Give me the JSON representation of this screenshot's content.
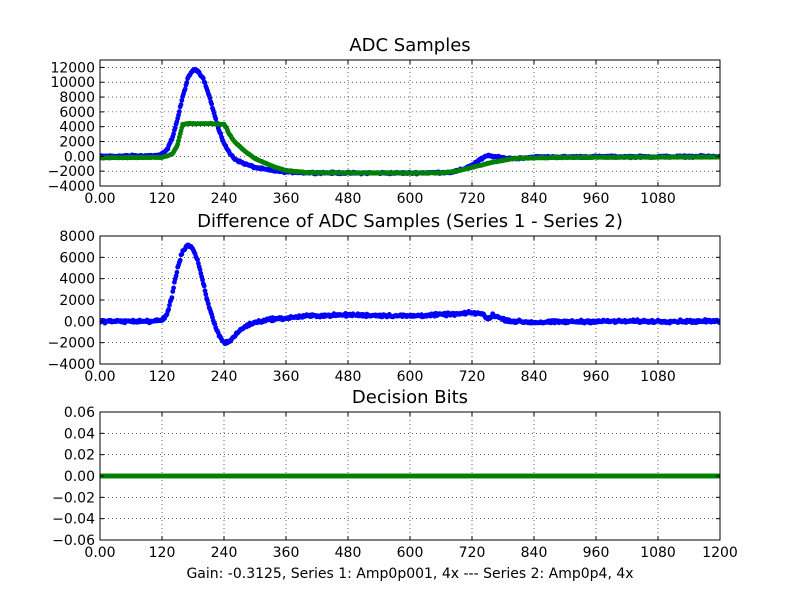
{
  "figure": {
    "footer": "Gain: -0.3125, Series 1: Amp0p001, 4x --- Series 2: Amp0p4, 4x"
  },
  "colors": {
    "series1": "#0000ff",
    "series2": "#008000",
    "grid": "#000000",
    "axes": "#000000"
  },
  "chart_data": [
    {
      "type": "scatter",
      "title": "ADC Samples",
      "xlabel": "",
      "ylabel": "",
      "xlim": [
        0,
        1200
      ],
      "ylim": [
        -4000,
        13000
      ],
      "x_ticks": [
        0,
        120,
        240,
        360,
        480,
        600,
        720,
        840,
        960,
        1080
      ],
      "y_ticks": [
        -4000,
        -2000,
        0,
        2000,
        4000,
        6000,
        8000,
        10000,
        12000
      ],
      "grid": true,
      "series": [
        {
          "color": "series1",
          "noise": 180,
          "x": [
            0,
            110,
            120,
            130,
            140,
            150,
            160,
            170,
            180,
            190,
            200,
            210,
            220,
            230,
            240,
            250,
            260,
            270,
            280,
            300,
            330,
            360,
            400,
            480,
            600,
            680,
            700,
            720,
            730,
            740,
            750,
            760,
            780,
            800,
            840,
            900,
            960,
            1080,
            1200
          ],
          "y": [
            0,
            100,
            300,
            900,
            2500,
            5000,
            8000,
            10500,
            11700,
            11500,
            10500,
            8500,
            6000,
            3500,
            1800,
            500,
            -300,
            -700,
            -1000,
            -1500,
            -1900,
            -2100,
            -2200,
            -2250,
            -2250,
            -2150,
            -1800,
            -1200,
            -700,
            -300,
            100,
            0,
            -200,
            -300,
            -100,
            -80,
            -50,
            -50,
            0
          ]
        },
        {
          "color": "series2",
          "noise": 60,
          "x": [
            0,
            120,
            140,
            150,
            155,
            160,
            170,
            220,
            240,
            245,
            250,
            260,
            280,
            300,
            320,
            340,
            360,
            400,
            600,
            660,
            690,
            720,
            760,
            800,
            840,
            900,
            1000,
            1100,
            1200
          ],
          "y": [
            -200,
            -150,
            300,
            1500,
            3000,
            4300,
            4400,
            4400,
            4300,
            3800,
            3000,
            2000,
            700,
            -300,
            -900,
            -1500,
            -1900,
            -2200,
            -2250,
            -2250,
            -2000,
            -1500,
            -800,
            -300,
            -200,
            -150,
            -120,
            -100,
            -100
          ]
        }
      ]
    },
    {
      "type": "scatter",
      "title": "Difference of ADC Samples (Series 1 - Series 2)",
      "xlabel": "",
      "ylabel": "",
      "xlim": [
        0,
        1200
      ],
      "ylim": [
        -4000,
        8000
      ],
      "x_ticks": [
        0,
        120,
        240,
        360,
        480,
        600,
        720,
        840,
        960,
        1080
      ],
      "y_ticks": [
        -4000,
        -2000,
        0,
        2000,
        4000,
        6000,
        8000
      ],
      "grid": true,
      "series": [
        {
          "color": "series1",
          "noise": 200,
          "x": [
            0,
            100,
            120,
            130,
            140,
            150,
            160,
            170,
            180,
            190,
            200,
            210,
            220,
            230,
            240,
            250,
            260,
            270,
            280,
            300,
            330,
            360,
            400,
            480,
            600,
            700,
            720,
            740,
            750,
            760,
            780,
            800,
            840,
            900,
            960,
            1080,
            1200
          ],
          "y": [
            0,
            0,
            100,
            700,
            2500,
            5000,
            6600,
            7200,
            6800,
            5500,
            3500,
            1500,
            0,
            -1300,
            -2000,
            -1900,
            -1400,
            -900,
            -500,
            -100,
            200,
            300,
            500,
            600,
            500,
            700,
            800,
            700,
            200,
            600,
            200,
            0,
            -100,
            -50,
            0,
            0,
            0
          ]
        }
      ]
    },
    {
      "type": "scatter",
      "title": "Decision Bits",
      "xlabel": "Gain: -0.3125, Series 1: Amp0p001, 4x --- Series 2: Amp0p4, 4x",
      "ylabel": "",
      "xlim": [
        0,
        1200
      ],
      "ylim": [
        -0.06,
        0.06
      ],
      "x_ticks": [
        0,
        120,
        240,
        360,
        480,
        600,
        720,
        840,
        960,
        1080,
        1200
      ],
      "y_ticks": [
        -0.06,
        -0.04,
        -0.02,
        0.0,
        0.02,
        0.04,
        0.06
      ],
      "grid": true,
      "series": [
        {
          "color": "series2",
          "noise": 0,
          "x": [
            0,
            1200
          ],
          "y": [
            0,
            0
          ]
        }
      ]
    }
  ]
}
